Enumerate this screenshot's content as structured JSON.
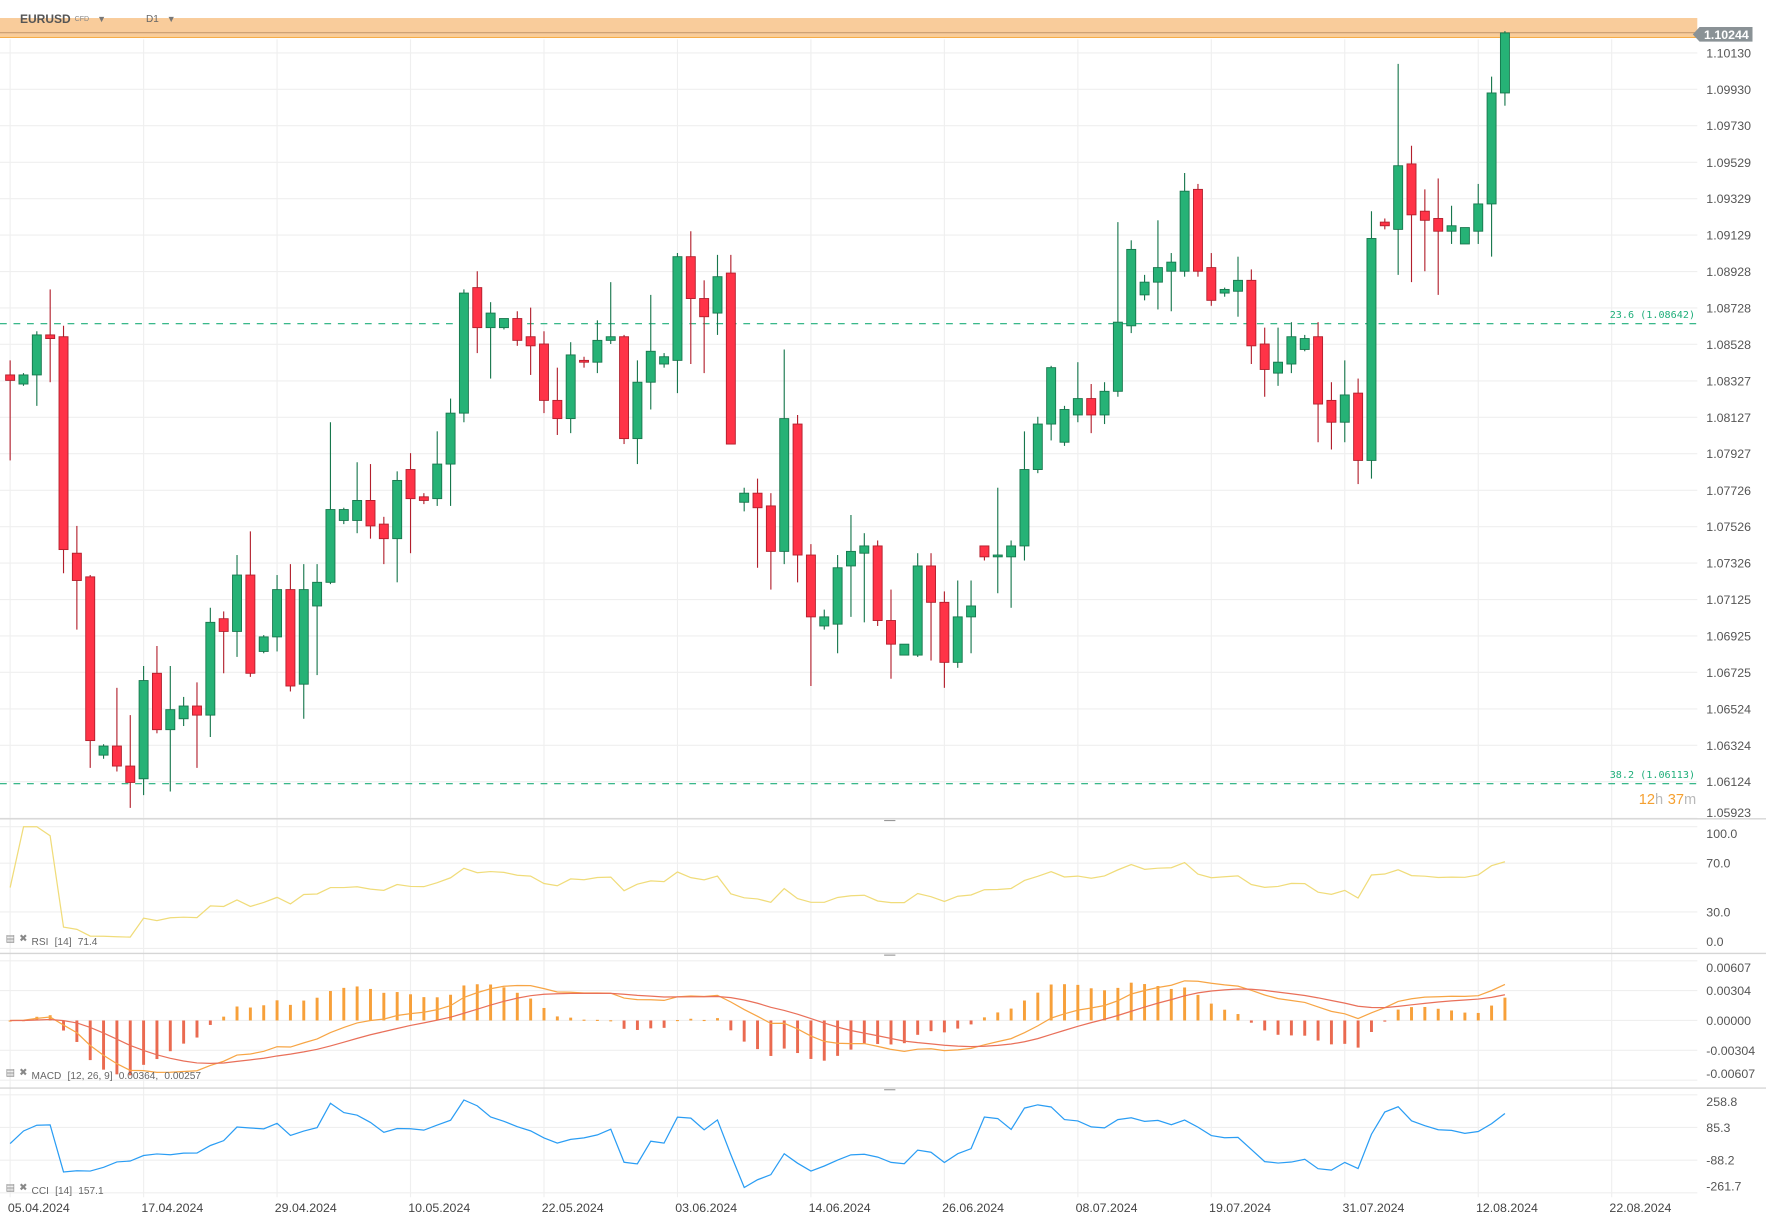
{
  "header": {
    "symbol": "EURUSD",
    "instrument_type": "CFD",
    "timeframe": "D1"
  },
  "current_price": "1.10244",
  "countdown": {
    "hours": "12",
    "h": "h",
    "minutes": "37",
    "m": "m"
  },
  "colors": {
    "up": "#26b276",
    "up_border": "#17774d",
    "down": "#ff3347",
    "down_border": "#b21f2c",
    "fib": "#1fae7a",
    "band": "#f9cc9b",
    "band_line": "#f5a030",
    "price_tag": "#8a9296",
    "rsi": "#f0dc7a",
    "macd": "#f7a545",
    "signal": "#e9705a",
    "hist_pos": "#f7a03a",
    "hist_neg": "#ea6a50",
    "cci": "#2a9df4",
    "countdown": "#f5a030"
  },
  "chart_data": {
    "type": "candlestick",
    "title": "EURUSD D1",
    "price_range": [
      1.05923,
      1.10244
    ],
    "price_ticks": [
      "1.10130",
      "1.09930",
      "1.09730",
      "1.09529",
      "1.09329",
      "1.09129",
      "1.08928",
      "1.08728",
      "1.08528",
      "1.08327",
      "1.08127",
      "1.07927",
      "1.07726",
      "1.07526",
      "1.07326",
      "1.07125",
      "1.06925",
      "1.06725",
      "1.06524",
      "1.06324",
      "1.06124",
      "1.05923"
    ],
    "date_labels": [
      {
        "label": "05.04.2024",
        "index": 0
      },
      {
        "label": "17.04.2024",
        "index": 10
      },
      {
        "label": "29.04.2024",
        "index": 20
      },
      {
        "label": "10.05.2024",
        "index": 30
      },
      {
        "label": "22.05.2024",
        "index": 40
      },
      {
        "label": "03.06.2024",
        "index": 50
      },
      {
        "label": "14.06.2024",
        "index": 60
      },
      {
        "label": "26.06.2024",
        "index": 70
      },
      {
        "label": "08.07.2024",
        "index": 80
      },
      {
        "label": "19.07.2024",
        "index": 90
      },
      {
        "label": "31.07.2024",
        "index": 100
      },
      {
        "label": "12.08.2024",
        "index": 110
      },
      {
        "label": "22.08.2024",
        "index": 120
      }
    ],
    "ohlc_fields": [
      "open",
      "high",
      "low",
      "close"
    ],
    "ohlc": [
      [
        1.0836,
        1.0844,
        1.0789,
        1.0833
      ],
      [
        1.0831,
        1.0837,
        1.083,
        1.0836
      ],
      [
        1.0836,
        1.086,
        1.0819,
        1.0858
      ],
      [
        1.0858,
        1.0883,
        1.0832,
        1.0856
      ],
      [
        1.0857,
        1.0863,
        1.0727,
        1.074
      ],
      [
        1.0738,
        1.0753,
        1.0696,
        1.0723
      ],
      [
        1.0725,
        1.0726,
        1.062,
        1.0635
      ],
      [
        1.0627,
        1.0633,
        1.0625,
        1.0632
      ],
      [
        1.0632,
        1.0664,
        1.0618,
        1.0621
      ],
      [
        1.0621,
        1.0649,
        1.0598,
        1.0612
      ],
      [
        1.0614,
        1.0676,
        1.0605,
        1.0668
      ],
      [
        1.0672,
        1.0687,
        1.0639,
        1.0641
      ],
      [
        1.0641,
        1.0676,
        1.0607,
        1.0652
      ],
      [
        1.0647,
        1.0659,
        1.0643,
        1.0654
      ],
      [
        1.0654,
        1.0667,
        1.062,
        1.0649
      ],
      [
        1.0649,
        1.0708,
        1.0637,
        1.07
      ],
      [
        1.0702,
        1.0706,
        1.0672,
        1.0695
      ],
      [
        1.0695,
        1.0737,
        1.0681,
        1.0726
      ],
      [
        1.0726,
        1.075,
        1.067,
        1.0672
      ],
      [
        1.0684,
        1.0693,
        1.0683,
        1.0692
      ],
      [
        1.0692,
        1.0726,
        1.0684,
        1.0718
      ],
      [
        1.0718,
        1.0732,
        1.0662,
        1.0665
      ],
      [
        1.0666,
        1.0732,
        1.0647,
        1.0718
      ],
      [
        1.0709,
        1.0732,
        1.0671,
        1.0722
      ],
      [
        1.0722,
        1.081,
        1.0721,
        1.0762
      ],
      [
        1.0756,
        1.0763,
        1.0754,
        1.0762
      ],
      [
        1.0756,
        1.0788,
        1.0749,
        1.0767
      ],
      [
        1.0767,
        1.0787,
        1.0746,
        1.0753
      ],
      [
        1.0754,
        1.0758,
        1.0732,
        1.0746
      ],
      [
        1.0746,
        1.0783,
        1.0722,
        1.0778
      ],
      [
        1.0784,
        1.0793,
        1.0738,
        1.0768
      ],
      [
        1.0769,
        1.0771,
        1.0765,
        1.0767
      ],
      [
        1.0768,
        1.0805,
        1.0764,
        1.0787
      ],
      [
        1.0787,
        1.0823,
        1.0764,
        1.0815
      ],
      [
        1.0815,
        1.0883,
        1.081,
        1.0881
      ],
      [
        1.0884,
        1.0893,
        1.0848,
        1.0862
      ],
      [
        1.0862,
        1.0876,
        1.0834,
        1.087
      ],
      [
        1.0862,
        1.0867,
        1.0861,
        1.0867
      ],
      [
        1.0867,
        1.0871,
        1.0852,
        1.0855
      ],
      [
        1.0857,
        1.0873,
        1.0836,
        1.0852
      ],
      [
        1.0853,
        1.086,
        1.0815,
        1.0822
      ],
      [
        1.0822,
        1.084,
        1.0803,
        1.0812
      ],
      [
        1.0812,
        1.0854,
        1.0804,
        1.0847
      ],
      [
        1.0844,
        1.0846,
        1.084,
        1.0843
      ],
      [
        1.0843,
        1.0866,
        1.0837,
        1.0855
      ],
      [
        1.0855,
        1.0887,
        1.0853,
        1.0857
      ],
      [
        1.0857,
        1.0858,
        1.0798,
        1.0801
      ],
      [
        1.0801,
        1.0844,
        1.0787,
        1.0832
      ],
      [
        1.0832,
        1.088,
        1.0817,
        1.0849
      ],
      [
        1.0842,
        1.0848,
        1.084,
        1.0846
      ],
      [
        1.0844,
        1.0903,
        1.0826,
        1.0901
      ],
      [
        1.0901,
        1.0915,
        1.0842,
        1.0878
      ],
      [
        1.0878,
        1.0888,
        1.0837,
        1.0868
      ],
      [
        1.087,
        1.0902,
        1.0858,
        1.089
      ],
      [
        1.0892,
        1.0902,
        1.0798,
        1.0798
      ],
      [
        1.0766,
        1.0774,
        1.0761,
        1.0771
      ],
      [
        1.0771,
        1.0779,
        1.073,
        1.0763
      ],
      [
        1.0764,
        1.0771,
        1.0718,
        1.0739
      ],
      [
        1.0739,
        1.085,
        1.0732,
        1.0812
      ],
      [
        1.0809,
        1.0814,
        1.0722,
        1.0737
      ],
      [
        1.0737,
        1.0743,
        1.0665,
        1.0703
      ],
      [
        1.0698,
        1.0707,
        1.0696,
        1.0703
      ],
      [
        1.0699,
        1.0737,
        1.0683,
        1.073
      ],
      [
        1.0731,
        1.0759,
        1.0703,
        1.0739
      ],
      [
        1.0738,
        1.0749,
        1.07,
        1.0742
      ],
      [
        1.0742,
        1.0745,
        1.0698,
        1.0701
      ],
      [
        1.0701,
        1.0718,
        1.0669,
        1.0688
      ],
      [
        1.0682,
        1.0688,
        1.0682,
        1.0688
      ],
      [
        1.0682,
        1.0738,
        1.0681,
        1.0731
      ],
      [
        1.0731,
        1.0738,
        1.0679,
        1.0711
      ],
      [
        1.0711,
        1.0717,
        1.0664,
        1.0678
      ],
      [
        1.0678,
        1.0723,
        1.0675,
        1.0703
      ],
      [
        1.0703,
        1.0723,
        1.0683,
        1.0709
      ],
      [
        1.0742,
        1.0742,
        1.0734,
        1.0736
      ],
      [
        1.0736,
        1.0774,
        1.0716,
        1.0737
      ],
      [
        1.0736,
        1.0745,
        1.0708,
        1.0742
      ],
      [
        1.0742,
        1.0805,
        1.0734,
        1.0784
      ],
      [
        1.0784,
        1.0813,
        1.0782,
        1.0809
      ],
      [
        1.0809,
        1.0841,
        1.08,
        1.084
      ],
      [
        1.0799,
        1.0819,
        1.0797,
        1.0817
      ],
      [
        1.0814,
        1.0843,
        1.081,
        1.0823
      ],
      [
        1.0823,
        1.0831,
        1.0804,
        1.0814
      ],
      [
        1.0814,
        1.0832,
        1.0809,
        1.0827
      ],
      [
        1.0827,
        1.092,
        1.0824,
        1.0865
      ],
      [
        1.0863,
        1.091,
        1.0859,
        1.0905
      ],
      [
        1.088,
        1.0891,
        1.0877,
        1.0887
      ],
      [
        1.0887,
        1.0921,
        1.0872,
        1.0895
      ],
      [
        1.0893,
        1.0903,
        1.0871,
        1.0898
      ],
      [
        1.0893,
        1.0947,
        1.089,
        1.0937
      ],
      [
        1.0938,
        1.0941,
        1.089,
        1.0893
      ],
      [
        1.0895,
        1.0903,
        1.0874,
        1.0877
      ],
      [
        1.0881,
        1.0884,
        1.0879,
        1.0883
      ],
      [
        1.0882,
        1.0901,
        1.0868,
        1.0888
      ],
      [
        1.0888,
        1.0894,
        1.0842,
        1.0852
      ],
      [
        1.0853,
        1.0862,
        1.0824,
        1.0839
      ],
      [
        1.0837,
        1.0862,
        1.083,
        1.0843
      ],
      [
        1.0842,
        1.0865,
        1.0837,
        1.0857
      ],
      [
        1.085,
        1.0858,
        1.0849,
        1.0856
      ],
      [
        1.0857,
        1.0865,
        1.0799,
        1.082
      ],
      [
        1.0822,
        1.0832,
        1.0795,
        1.081
      ],
      [
        1.081,
        1.0844,
        1.0799,
        1.0825
      ],
      [
        1.0826,
        1.0834,
        1.0776,
        1.0789
      ],
      [
        1.0789,
        1.0926,
        1.0779,
        1.0911
      ],
      [
        1.092,
        1.0922,
        1.0916,
        1.0918
      ],
      [
        1.0916,
        1.1007,
        1.0891,
        1.0951
      ],
      [
        1.0952,
        1.0962,
        1.0887,
        1.0924
      ],
      [
        1.0926,
        1.0938,
        1.0893,
        1.0921
      ],
      [
        1.0922,
        1.0944,
        1.088,
        1.0915
      ],
      [
        1.0915,
        1.0929,
        1.0908,
        1.0918
      ],
      [
        1.0908,
        1.0917,
        1.0908,
        1.0917
      ],
      [
        1.0915,
        1.0941,
        1.0908,
        1.093
      ],
      [
        1.093,
        1.1,
        1.0901,
        1.0991
      ],
      [
        1.0991,
        1.1025,
        1.0984,
        1.1024
      ]
    ],
    "fib_levels": [
      {
        "label": "23.6 (1.08642)",
        "value": 1.08642
      },
      {
        "label": "38.2 (1.06113)",
        "value": 1.06113
      }
    ],
    "indicators": {
      "rsi": {
        "name": "RSI",
        "params": "[14]",
        "value": "71.4",
        "ticks": [
          "100.0",
          "70.0",
          "30.0",
          "0.0"
        ]
      },
      "macd": {
        "name": "MACD",
        "params": "[12, 26, 9]",
        "value": "0.00364,",
        "signal_value": "0.00257",
        "ticks": [
          "0.00607",
          "0.00304",
          "0.00000",
          "-0.00304",
          "-0.00607"
        ]
      },
      "cci": {
        "name": "CCI",
        "params": "[14]",
        "value": "157.1",
        "ticks": [
          "258.8",
          "85.3",
          "-88.2",
          "-261.7"
        ]
      }
    }
  }
}
